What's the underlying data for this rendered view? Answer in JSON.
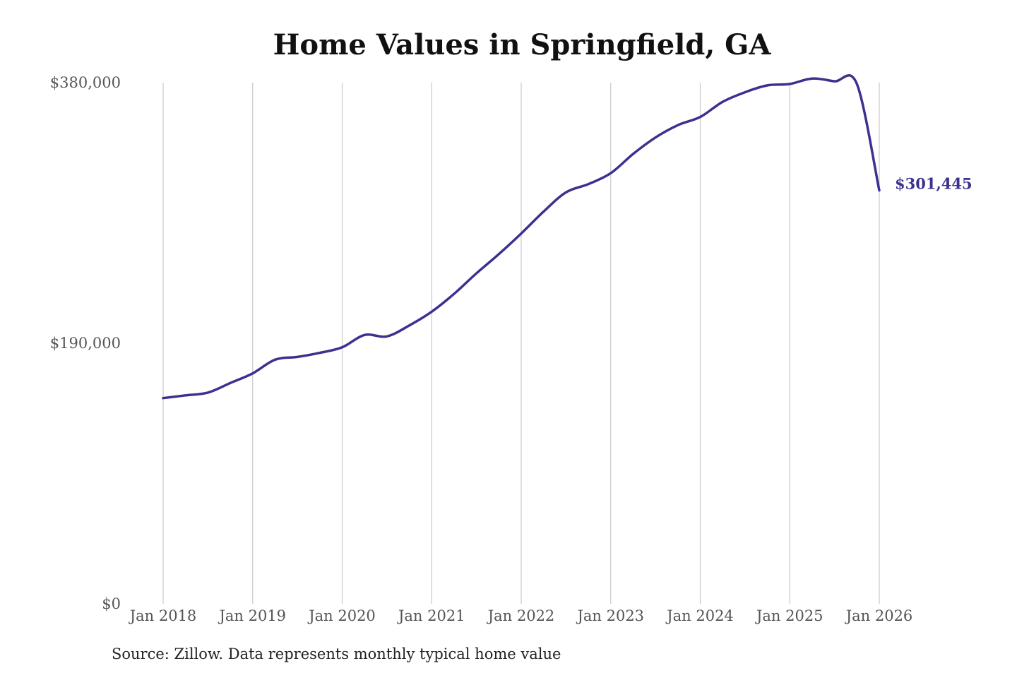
{
  "chart_data": {
    "type": "line",
    "title": "Home Values in Springfield, GA",
    "xlabel": "",
    "ylabel": "",
    "ylim": [
      0,
      380000
    ],
    "y_ticks": [
      {
        "value": 0,
        "label": "$0"
      },
      {
        "value": 190000,
        "label": "$190,000"
      },
      {
        "value": 380000,
        "label": "$380,000"
      }
    ],
    "x_ticks": [
      {
        "value": 2018,
        "label": "Jan 2018"
      },
      {
        "value": 2019,
        "label": "Jan 2019"
      },
      {
        "value": 2020,
        "label": "Jan 2020"
      },
      {
        "value": 2021,
        "label": "Jan 2021"
      },
      {
        "value": 2022,
        "label": "Jan 2022"
      },
      {
        "value": 2023,
        "label": "Jan 2023"
      },
      {
        "value": 2024,
        "label": "Jan 2024"
      },
      {
        "value": 2025,
        "label": "Jan 2025"
      },
      {
        "value": 2026,
        "label": "Jan 2026"
      }
    ],
    "xlim": [
      2018,
      2026
    ],
    "grid": "vertical",
    "line_color": "#3a3190",
    "end_label": "$301,445",
    "series": [
      {
        "x": [
          "2018-01",
          "2018-04",
          "2018-07",
          "2018-10",
          "2019-01",
          "2019-04",
          "2019-07",
          "2019-10",
          "2020-01",
          "2020-04",
          "2020-07",
          "2020-10",
          "2021-01",
          "2021-04",
          "2021-07",
          "2021-10",
          "2022-01",
          "2022-04",
          "2022-07",
          "2022-10",
          "2023-01",
          "2023-04",
          "2023-07",
          "2023-10",
          "2024-01",
          "2024-04",
          "2024-07",
          "2024-10",
          "2025-01",
          "2025-04",
          "2025-07",
          "2025-10",
          "2026-01"
        ],
        "y": [
          150000,
          152000,
          154000,
          161000,
          168000,
          178000,
          180000,
          183000,
          187000,
          196000,
          195000,
          203000,
          213000,
          226000,
          241000,
          255000,
          270000,
          286000,
          300000,
          306000,
          314000,
          328000,
          340000,
          349000,
          355000,
          366000,
          373000,
          378000,
          379000,
          383000,
          381000,
          379000,
          301445
        ]
      }
    ]
  },
  "source": {
    "text": "Source: Zillow. Data represents monthly typical home value"
  }
}
